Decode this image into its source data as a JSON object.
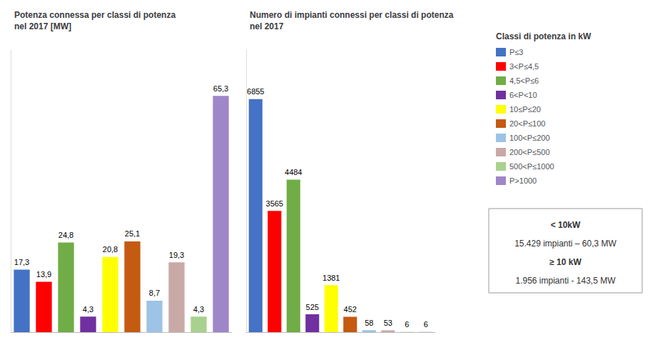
{
  "chart_data": [
    {
      "type": "bar",
      "title": "Potenza connessa per classi di potenza\nnel 2017 [MW]",
      "categories": [
        "P≤3",
        "3<P≤4,5",
        "4,5<P≤6",
        "6<P<10",
        "10≤P≤20",
        "20<P≤100",
        "100<P≤200",
        "200<P≤500",
        "500<P≤1000",
        "P>1000"
      ],
      "colors": [
        "#4472C4",
        "#FF0000",
        "#70AD47",
        "#7030A0",
        "#FFFF00",
        "#C55A11",
        "#9DC3E6",
        "#C9A9A6",
        "#A9D18E",
        "#9E86C8"
      ],
      "values": [
        17.3,
        13.9,
        24.8,
        4.3,
        20.8,
        25.1,
        8.7,
        19.3,
        4.3,
        65.3
      ],
      "value_labels": [
        "17,3",
        "13,9",
        "24,8",
        "4,3",
        "20,8",
        "25,1",
        "8,7",
        "19,3",
        "4,3",
        "65,3"
      ],
      "ylim": [
        0,
        78
      ],
      "yticks": [],
      "grid": false,
      "tick_labels": false,
      "data_labels": true
    },
    {
      "type": "bar",
      "title": "Numero di impianti connessi per classi di potenza\nnel 2017",
      "categories": [
        "P≤3",
        "3<P≤4,5",
        "4,5<P≤6",
        "6<P<10",
        "10≤P≤20",
        "20<P≤100",
        "100<P≤200",
        "200<P≤500",
        "500<P≤1000",
        "P>1000"
      ],
      "colors": [
        "#4472C4",
        "#FF0000",
        "#70AD47",
        "#7030A0",
        "#FFFF00",
        "#C55A11",
        "#9DC3E6",
        "#C9A9A6",
        "#A9D18E",
        "#9E86C8"
      ],
      "values": [
        6855,
        3565,
        4484,
        525,
        1381,
        452,
        58,
        53,
        6,
        6
      ],
      "ylim": [
        0,
        8300
      ],
      "yticks": [],
      "grid": false,
      "tick_labels": false,
      "data_labels": true,
      "legend": "upper right",
      "legend_title": "Classi di potenza in kW",
      "annotations": [
        "< 10kW",
        "15.429 impianti – 60,3 MW",
        "≥ 10 kW",
        "1.956 impianti - 143,5 MW"
      ]
    }
  ]
}
